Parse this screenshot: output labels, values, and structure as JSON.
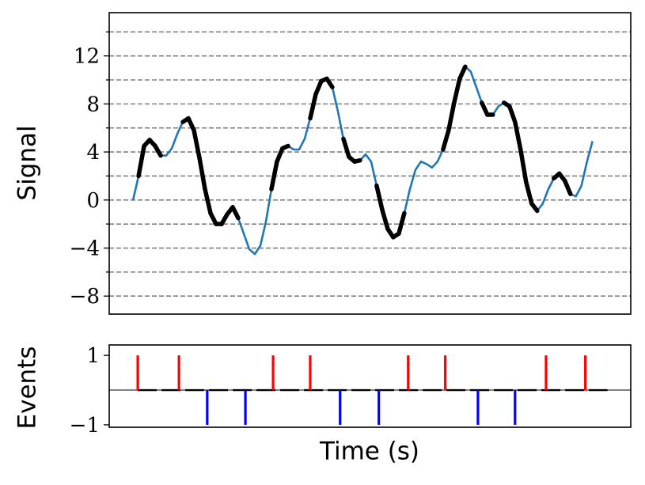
{
  "chart_data": [
    {
      "type": "line",
      "ylabel": "Signal",
      "series": [
        {
          "color": "#1f77b4",
          "bold_color": "#000000",
          "values": [
            0,
            2,
            4.5,
            5.0,
            4.5,
            3.7,
            3.7,
            4.3,
            5.5,
            6.5,
            6.8,
            5.8,
            3.5,
            0.9,
            -1.1,
            -2.0,
            -2.0,
            -1.2,
            -0.6,
            -1.5,
            -2.8,
            -4.1,
            -4.5,
            -3.8,
            -1.8,
            0.9,
            3.2,
            4.3,
            4.5,
            4.2,
            4.2,
            5.1,
            6.8,
            8.8,
            9.9,
            10.1,
            9.4,
            7.4,
            5.1,
            3.6,
            3.2,
            3.3,
            3.8,
            3.2,
            1.2,
            -0.8,
            -2.4,
            -3.1,
            -2.8,
            -1.1,
            0.9,
            2.5,
            3.2,
            3.0,
            2.7,
            3.2,
            4.2,
            5.8,
            8.1,
            10.1,
            11.1,
            10.7,
            9.4,
            8.1,
            7.1,
            7.1,
            7.8,
            8.1,
            7.8,
            6.5,
            4.2,
            1.5,
            -0.3,
            -0.9,
            -0.3,
            0.9,
            1.8,
            2.2,
            1.6,
            0.5,
            0.3,
            1.2,
            3.2,
            4.9
          ],
          "bold": [
            false,
            true,
            true,
            true,
            true,
            false,
            false,
            false,
            false,
            true,
            true,
            true,
            true,
            true,
            true,
            true,
            true,
            true,
            true,
            false,
            false,
            false,
            false,
            false,
            false,
            true,
            true,
            true,
            false,
            false,
            false,
            false,
            true,
            true,
            true,
            true,
            false,
            false,
            true,
            true,
            true,
            false,
            false,
            false,
            true,
            true,
            true,
            true,
            true,
            false,
            false,
            false,
            false,
            false,
            false,
            false,
            true,
            true,
            true,
            true,
            false,
            false,
            false,
            true,
            true,
            false,
            false,
            true,
            true,
            true,
            true,
            true,
            true,
            false,
            false,
            false,
            true,
            true,
            true,
            false,
            false,
            false,
            false,
            false
          ]
        }
      ],
      "xlim": [
        -4.3,
        89.9
      ],
      "ylim": [
        -9.5,
        15.6
      ],
      "yticks": [
        {
          "value": -8,
          "label": "−8"
        },
        {
          "value": -4,
          "label": "−4"
        },
        0,
        4,
        8,
        12
      ],
      "yminorticks": [
        -6,
        -2,
        2,
        6,
        10,
        14
      ],
      "grid": true
    },
    {
      "type": "stem",
      "ylabel": "Events",
      "xlabel": "Time (s)",
      "x": [
        0.86,
        8.3,
        13.4,
        20.3,
        25.3,
        32,
        37.4,
        44.4,
        49.7,
        56.4,
        62.3,
        69,
        74.6,
        81.7
      ],
      "values": [
        1,
        1,
        -1,
        -1,
        1,
        1,
        -1,
        -1,
        1,
        1,
        -1,
        -1,
        1,
        1
      ],
      "up_color": "#ff0000",
      "down_color": "#0000ff",
      "xlim": [
        -4.3,
        89.9
      ],
      "ylim": [
        -1.07,
        1.3
      ],
      "yticks": [
        {
          "value": -1,
          "label": "−1"
        },
        1
      ]
    }
  ]
}
